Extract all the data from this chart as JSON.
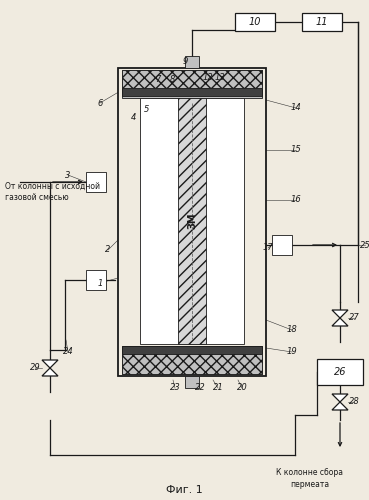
{
  "bg_color": "#f0ebe0",
  "line_color": "#1a1a1a",
  "gray_light": "#c0c0c0",
  "gray_mid": "#888888",
  "gray_dark": "#404040",
  "white": "#ffffff",
  "fig_caption": "Фиг. 1",
  "label_from": "От колонны с исходной\nгазовой смесью",
  "label_to": "К колонне сбора\nпермеата",
  "membrane_text": "ЗМ"
}
